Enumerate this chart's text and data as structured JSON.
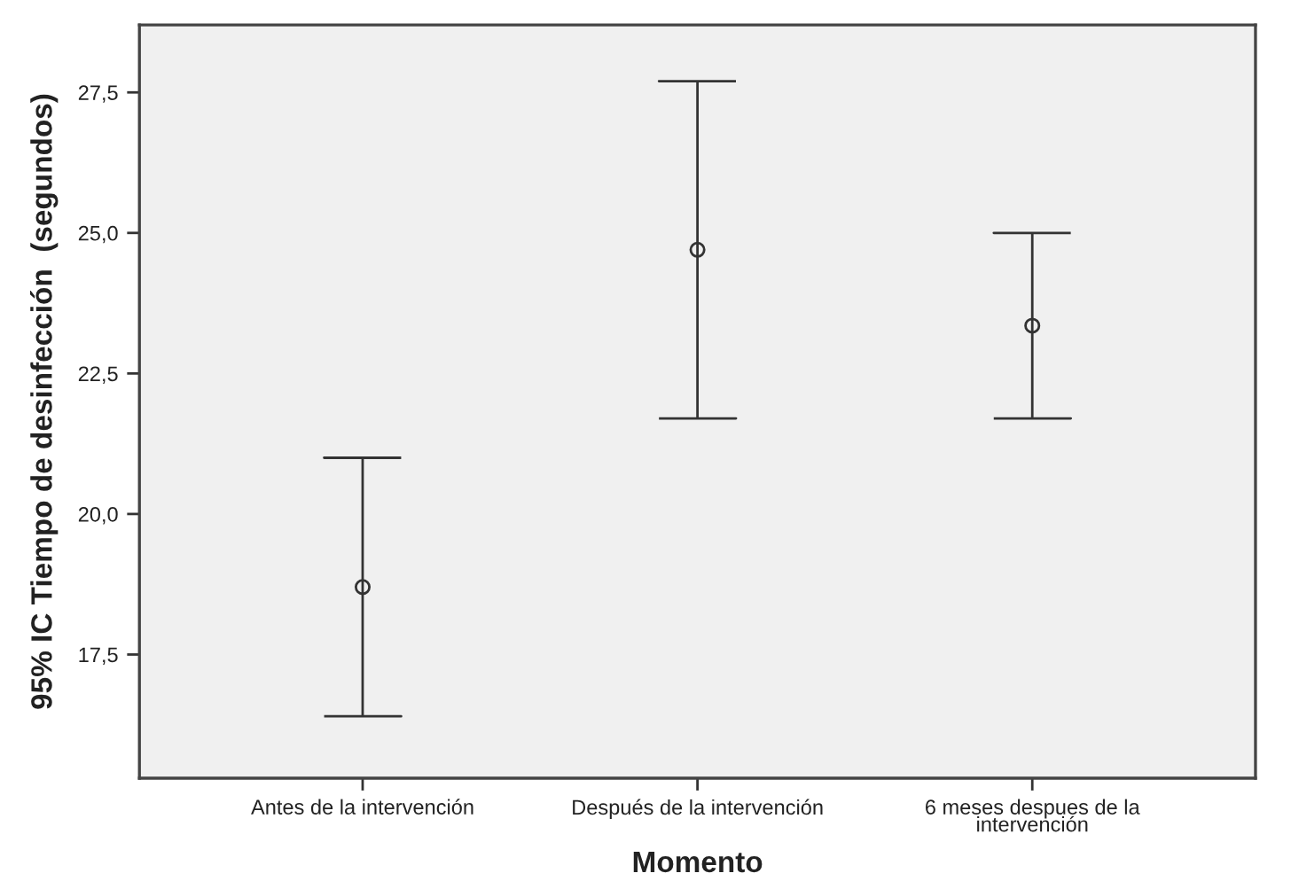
{
  "chart_data": {
    "type": "scatter",
    "xlabel": "Momento",
    "ylabel": "95% IC Tiempo de desinfección  (segundos)",
    "categories": [
      "Antes de la intervención",
      "Después de la intervención",
      "6 meses despues de la\nintervención"
    ],
    "values": [
      18.7,
      24.7,
      23.35
    ],
    "errors": [
      2.3,
      3.0,
      1.65
    ],
    "color": "#333333",
    "ylim": [
      15.3,
      28.7
    ],
    "yticks": [
      {
        "value": 17.5,
        "label": "17,5"
      },
      {
        "value": 20.0,
        "label": "20,0"
      },
      {
        "value": 22.5,
        "label": "22,5"
      },
      {
        "value": 25.0,
        "label": "25,0"
      },
      {
        "value": 27.5,
        "label": "27,5"
      }
    ],
    "grid": false,
    "legend": false,
    "marker": "circle",
    "line_style": "none"
  }
}
